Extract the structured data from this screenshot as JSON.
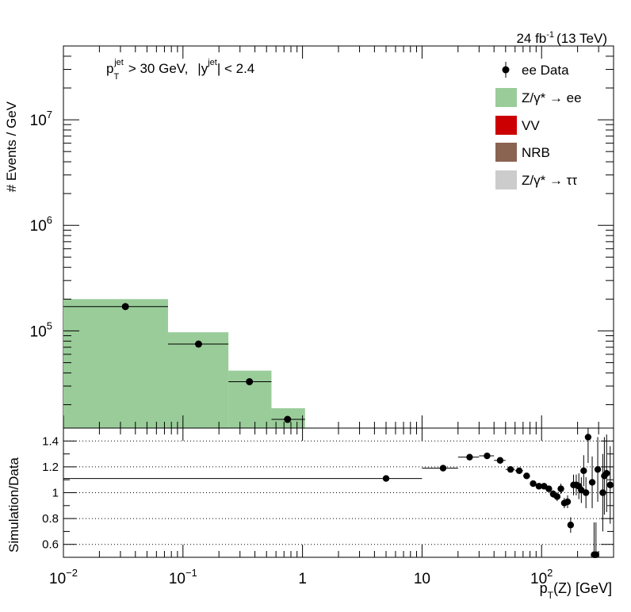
{
  "header": {
    "lumi_value": "24 fb",
    "lumi_exponent": "-1",
    "energy": "(13 TeV)"
  },
  "cut_label": {
    "p": "p",
    "pt_sub": "T",
    "pt_sup": "jet",
    "pt_cut": "> 30 GeV,",
    "y_open": "|y",
    "y_sup": "jet",
    "y_cut": "| < 2.4"
  },
  "chart_data": [
    {
      "type": "bar",
      "panel": "main",
      "ylabel": "# Events / GeV",
      "x_scale": "log",
      "y_scale": "log",
      "xlim": [
        0.01,
        400
      ],
      "ylim": [
        12000,
        50000000
      ],
      "y_ticks": [
        {
          "value": 100000,
          "label": "10",
          "exp": "5"
        },
        {
          "value": 1000000,
          "label": "10",
          "exp": "6"
        },
        {
          "value": 10000000,
          "label": "10",
          "exp": "7"
        }
      ],
      "legend_position": "top-right",
      "legend": [
        {
          "label": "ee Data",
          "marker": "point",
          "color": "#000000"
        },
        {
          "label": "Z/γ* → ee",
          "marker": "box",
          "color": "#99cc99"
        },
        {
          "label": "VV",
          "marker": "box",
          "color": "#cc0000"
        },
        {
          "label": "NRB",
          "marker": "box",
          "color": "#8b6351"
        },
        {
          "label": "Z/γ* → ττ",
          "marker": "box",
          "color": "#cccccc"
        }
      ],
      "mc_series": {
        "name": "Z/γ* → ee",
        "color": "#99cc99",
        "bins": [
          {
            "lo": 0.01,
            "hi": 0.075,
            "value": 200000
          },
          {
            "lo": 0.075,
            "hi": 0.24,
            "value": 97000
          },
          {
            "lo": 0.24,
            "hi": 0.55,
            "value": 42000
          },
          {
            "lo": 0.55,
            "hi": 1.05,
            "value": 18500
          }
        ]
      },
      "data_series": {
        "name": "ee Data",
        "points": [
          {
            "x": 0.033,
            "y": 170000,
            "xlo": 0.01,
            "xhi": 0.075
          },
          {
            "x": 0.135,
            "y": 75000,
            "xlo": 0.075,
            "xhi": 0.24
          },
          {
            "x": 0.36,
            "y": 33000,
            "xlo": 0.24,
            "xhi": 0.55
          },
          {
            "x": 0.75,
            "y": 14500,
            "xlo": 0.55,
            "xhi": 1.05
          }
        ]
      }
    },
    {
      "type": "scatter",
      "panel": "ratio",
      "ylabel": "Simulation/Data",
      "xlabel": "p_T(Z) [GeV]",
      "x_scale": "log",
      "xlim": [
        0.01,
        400
      ],
      "ylim": [
        0.5,
        1.5
      ],
      "y_ticks": [
        0.6,
        0.8,
        1,
        1.2,
        1.4
      ],
      "gridlines_y": [
        0.6,
        0.8,
        1,
        1.2,
        1.4
      ],
      "x_ticks": [
        {
          "value": 0.01,
          "label": "10",
          "exp": "−2"
        },
        {
          "value": 0.1,
          "label": "10",
          "exp": "−1"
        },
        {
          "value": 1,
          "label": "1",
          "exp": ""
        },
        {
          "value": 10,
          "label": "10",
          "exp": ""
        },
        {
          "value": 100,
          "label": "10",
          "exp": "2"
        }
      ],
      "points": [
        {
          "x": 5,
          "y": 1.11,
          "xlo": 0.01,
          "xhi": 10,
          "err": 0.005
        },
        {
          "x": 15,
          "y": 1.19,
          "xlo": 10,
          "xhi": 20,
          "err": 0.005
        },
        {
          "x": 25,
          "y": 1.275,
          "xlo": 20,
          "xhi": 30,
          "err": 0.005
        },
        {
          "x": 35,
          "y": 1.285,
          "xlo": 30,
          "xhi": 40,
          "err": 0.005
        },
        {
          "x": 45,
          "y": 1.25,
          "xlo": 40,
          "xhi": 50,
          "err": 0.01
        },
        {
          "x": 55,
          "y": 1.18,
          "xlo": 50,
          "xhi": 60,
          "err": 0.01
        },
        {
          "x": 65,
          "y": 1.17,
          "xlo": 60,
          "xhi": 70,
          "err": 0.01
        },
        {
          "x": 75,
          "y": 1.13,
          "xlo": 70,
          "xhi": 80,
          "err": 0.01
        },
        {
          "x": 85,
          "y": 1.07,
          "xlo": 80,
          "xhi": 90,
          "err": 0.015
        },
        {
          "x": 95,
          "y": 1.05,
          "xlo": 90,
          "xhi": 100,
          "err": 0.02
        },
        {
          "x": 105,
          "y": 1.05,
          "xlo": 100,
          "xhi": 110,
          "err": 0.02
        },
        {
          "x": 115,
          "y": 1.03,
          "xlo": 110,
          "xhi": 120,
          "err": 0.025
        },
        {
          "x": 125,
          "y": 0.99,
          "xlo": 120,
          "xhi": 130,
          "err": 0.03
        },
        {
          "x": 135,
          "y": 0.97,
          "xlo": 130,
          "xhi": 140,
          "err": 0.035
        },
        {
          "x": 145,
          "y": 1.03,
          "xlo": 140,
          "xhi": 150,
          "err": 0.04
        },
        {
          "x": 155,
          "y": 0.92,
          "xlo": 150,
          "xhi": 160,
          "err": 0.04
        },
        {
          "x": 165,
          "y": 0.93,
          "xlo": 160,
          "xhi": 170,
          "err": 0.05
        },
        {
          "x": 175,
          "y": 0.75,
          "xlo": 170,
          "xhi": 180,
          "err": 0.06
        },
        {
          "x": 185,
          "y": 1.06,
          "xlo": 180,
          "xhi": 190,
          "err": 0.08
        },
        {
          "x": 195,
          "y": 1.06,
          "xlo": 190,
          "xhi": 200,
          "err": 0.08
        },
        {
          "x": 205,
          "y": 1.05,
          "xlo": 200,
          "xhi": 210,
          "err": 0.1
        },
        {
          "x": 215,
          "y": 1.02,
          "xlo": 210,
          "xhi": 220,
          "err": 0.1
        },
        {
          "x": 225,
          "y": 1.17,
          "xlo": 220,
          "xhi": 230,
          "err": 0.12
        },
        {
          "x": 235,
          "y": 1.0,
          "xlo": 230,
          "xhi": 240,
          "err": 0.12
        },
        {
          "x": 245,
          "y": 1.43,
          "xlo": 240,
          "xhi": 250,
          "err": 0.2
        },
        {
          "x": 265,
          "y": 1.08,
          "xlo": 260,
          "xhi": 270,
          "err": 0.2
        },
        {
          "x": 275,
          "y": 0.52,
          "xlo": 270,
          "xhi": 280,
          "err": 0.25
        },
        {
          "x": 285,
          "y": 0.52,
          "xlo": 280,
          "xhi": 290,
          "err": 0.25
        },
        {
          "x": 295,
          "y": 1.18,
          "xlo": 290,
          "xhi": 300,
          "err": 0.25
        },
        {
          "x": 325,
          "y": 1.0,
          "xlo": 320,
          "xhi": 330,
          "err": 0.3
        },
        {
          "x": 335,
          "y": 1.13,
          "xlo": 330,
          "xhi": 340,
          "err": 0.3
        },
        {
          "x": 350,
          "y": 1.15,
          "xlo": 345,
          "xhi": 355,
          "err": 0.3
        },
        {
          "x": 375,
          "y": 1.06,
          "xlo": 370,
          "xhi": 380,
          "err": 0.3
        }
      ]
    }
  ]
}
